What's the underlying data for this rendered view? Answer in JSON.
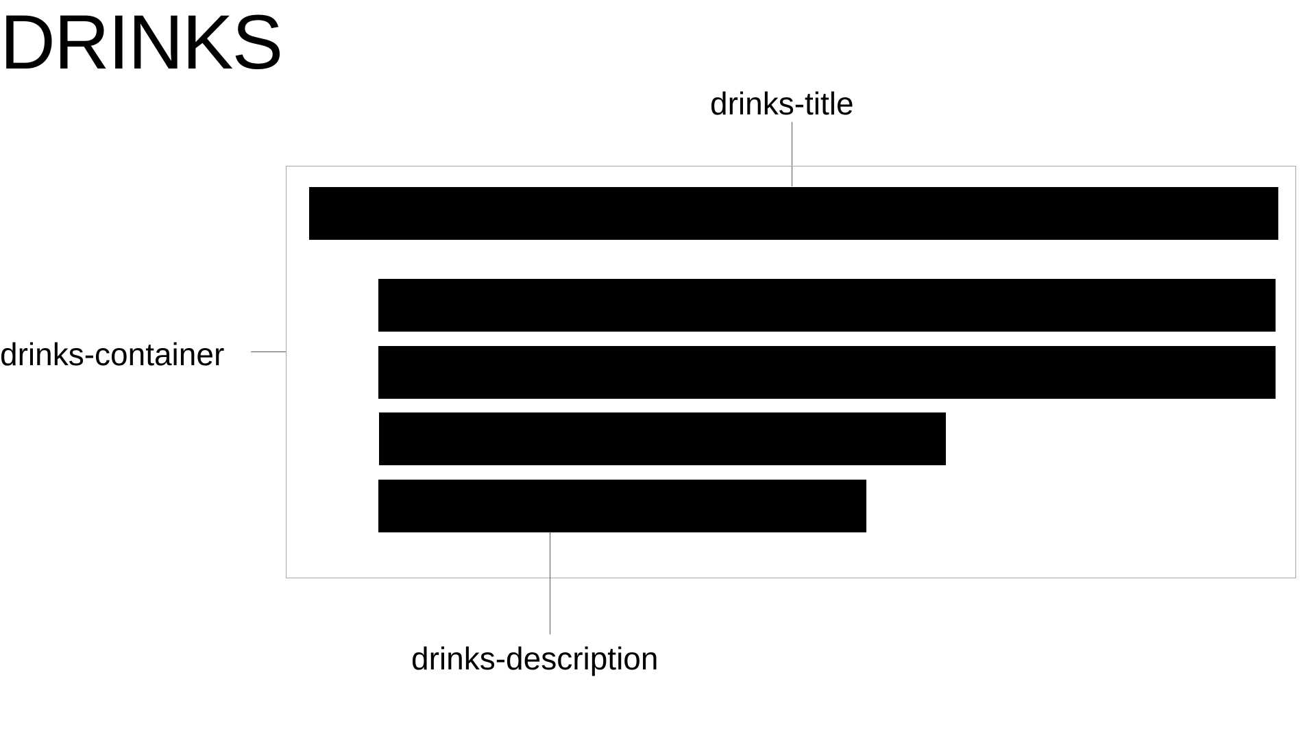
{
  "heading": "DRINKS",
  "labels": {
    "title": "drinks-title",
    "container": "drinks-container",
    "description": "drinks-description"
  },
  "colors": {
    "bar": "#000000",
    "container_border": "#a8a8a8",
    "leader_line": "#555555",
    "background": "#ffffff"
  }
}
